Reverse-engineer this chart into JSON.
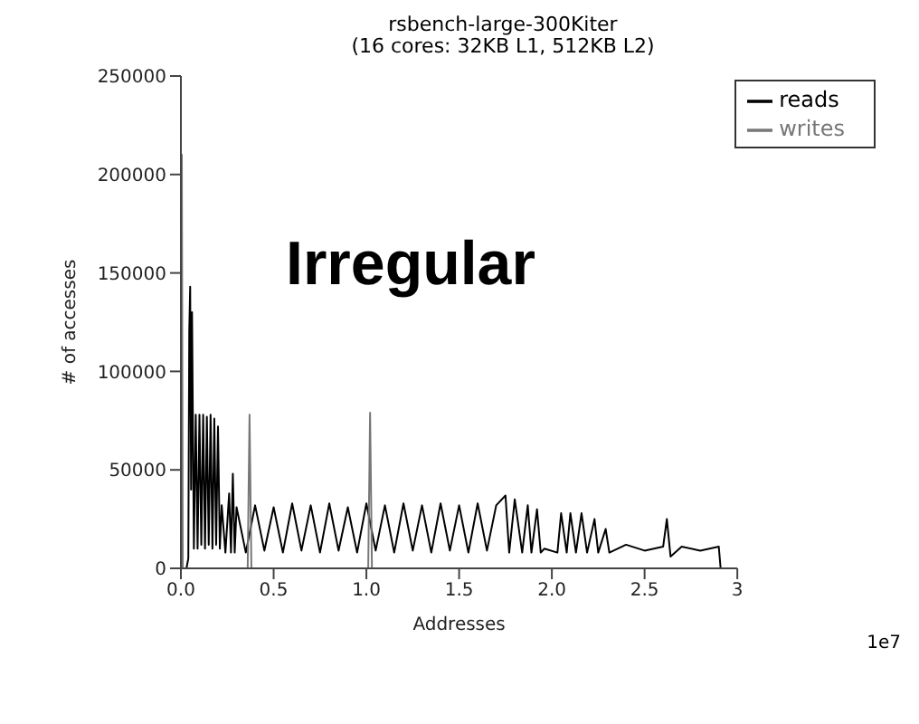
{
  "chart_data": {
    "type": "line",
    "title": "rsbench-large-300Kiter",
    "subtitle": "(16 cores: 32KB L1, 512KB L2)",
    "xlabel": "Addresses",
    "ylabel": "# of accesses",
    "annotations": [
      "Irregular",
      "1e7"
    ],
    "xlim": [
      0,
      3
    ],
    "xticks": [
      {
        "value": 0,
        "label": "0.0"
      },
      0.5,
      {
        "value": 1,
        "label": "1.0"
      },
      1.5,
      {
        "value": 2,
        "label": "2.0"
      },
      2.5,
      3
    ],
    "ylim": [
      0,
      250000
    ],
    "yticks": [
      0,
      50000,
      100000,
      150000,
      200000,
      250000
    ],
    "legend": "top right",
    "marker": "none",
    "line_style": "solid",
    "series": [
      {
        "name": "reads",
        "color": "#000000",
        "x": [
          0,
          0.03,
          0.04,
          0.045,
          0.05,
          0.055,
          0.06,
          0.065,
          0.07,
          0.08,
          0.09,
          0.1,
          0.11,
          0.12,
          0.13,
          0.14,
          0.15,
          0.16,
          0.17,
          0.18,
          0.19,
          0.2,
          0.21,
          0.22,
          0.24,
          0.26,
          0.27,
          0.28,
          0.29,
          0.3,
          0.35,
          0.4,
          0.45,
          0.5,
          0.55,
          0.6,
          0.65,
          0.7,
          0.75,
          0.8,
          0.85,
          0.9,
          0.95,
          1,
          1.05,
          1.1,
          1.15,
          1.2,
          1.25,
          1.3,
          1.35,
          1.4,
          1.45,
          1.5,
          1.55,
          1.6,
          1.65,
          1.7,
          1.75,
          1.77,
          1.8,
          1.84,
          1.87,
          1.89,
          1.92,
          1.94,
          1.96,
          2.03,
          2.05,
          2.08,
          2.1,
          2.13,
          2.16,
          2.19,
          2.23,
          2.25,
          2.29,
          2.31,
          2.4,
          2.5,
          2.6,
          2.62,
          2.64,
          2.7,
          2.8,
          2.9,
          2.91
        ],
        "values": [
          0,
          0,
          5000,
          120000,
          143000,
          40000,
          130000,
          70000,
          10000,
          78000,
          10000,
          78000,
          12000,
          78000,
          10000,
          77000,
          12000,
          78000,
          10000,
          76000,
          12000,
          72000,
          10000,
          32000,
          8000,
          38000,
          8000,
          48000,
          8000,
          31000,
          8000,
          32000,
          9000,
          31000,
          8000,
          33000,
          9000,
          32000,
          8000,
          33000,
          9000,
          31000,
          8000,
          33000,
          9000,
          32000,
          8000,
          33000,
          9000,
          32000,
          8000,
          33000,
          9000,
          32000,
          8000,
          33000,
          9000,
          32000,
          37000,
          8000,
          35000,
          8000,
          32000,
          8000,
          30000,
          8000,
          10000,
          8000,
          28000,
          8000,
          28000,
          8000,
          28000,
          8000,
          25000,
          8000,
          20000,
          8000,
          12000,
          9000,
          11000,
          25000,
          6000,
          11000,
          9000,
          11000,
          0
        ]
      },
      {
        "name": "writes",
        "color": "#777777",
        "x": [
          0,
          0.005,
          0.01,
          0.36,
          0.37,
          0.38,
          1.01,
          1.02,
          1.03,
          2.91
        ],
        "values": [
          0,
          210000,
          0,
          0,
          78000,
          0,
          0,
          79000,
          0,
          0
        ]
      }
    ]
  }
}
